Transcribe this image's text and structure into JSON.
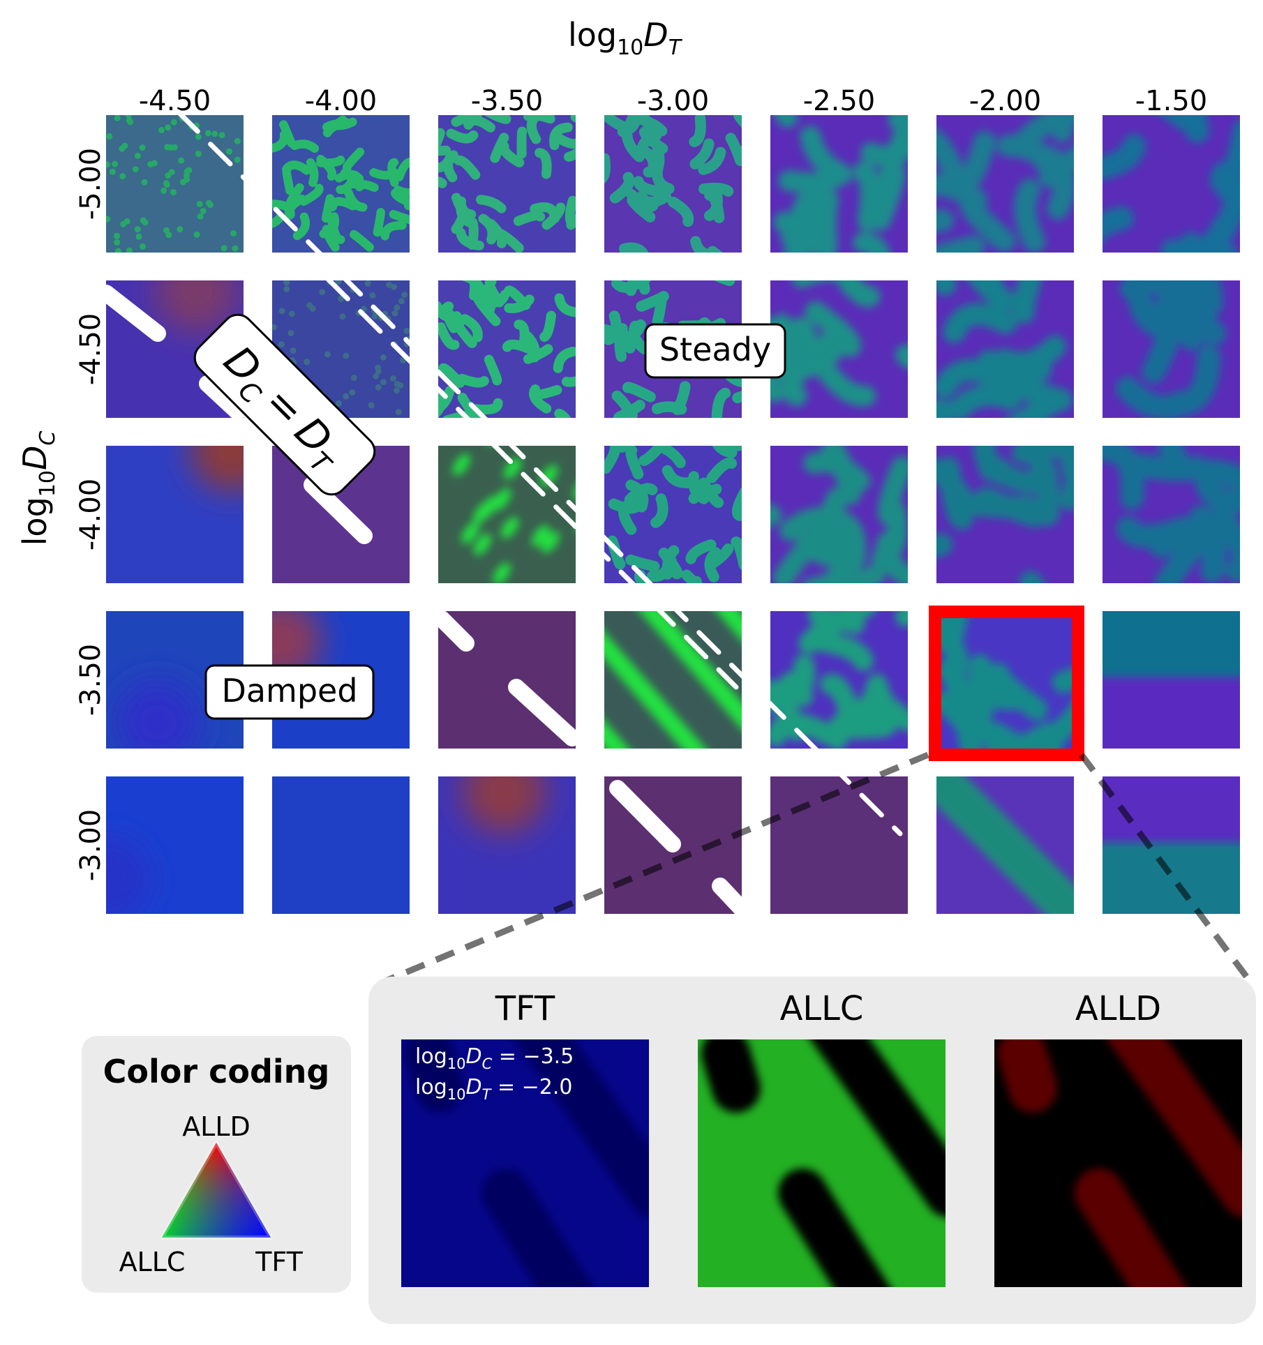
{
  "axes": {
    "x_title": "log",
    "x_title_sub": "10",
    "x_title_var": "D",
    "x_title_varsub": "T",
    "y_title": "log",
    "y_title_sub": "10",
    "y_title_var": "D",
    "y_title_varsub": "C",
    "x_ticks": [
      "-4.50",
      "-4.00",
      "-3.50",
      "-3.00",
      "-2.50",
      "-2.00",
      "-1.50"
    ],
    "y_ticks": [
      "-5.00",
      "-4.50",
      "-4.00",
      "-3.50",
      "-3.00"
    ]
  },
  "grid": {
    "rows": [
      [
        {
          "base": "#3b6a8c",
          "pattern": "dots",
          "fg": "#27a867"
        },
        {
          "base": "#3a4fa6",
          "pattern": "labyrinth",
          "fg": "#28b86c"
        },
        {
          "base": "#4a3fb0",
          "pattern": "labyrinth",
          "fg": "#2fb07c"
        },
        {
          "base": "#5a36b0",
          "pattern": "labyrinth",
          "fg": "#2aa08a"
        },
        {
          "base": "#5b2cb8",
          "pattern": "blobs",
          "fg": "#1f8c8c"
        },
        {
          "base": "#5b2cb8",
          "pattern": "blobs",
          "fg": "#1a7c92"
        },
        {
          "base": "#5b2cb8",
          "pattern": "blobs",
          "fg": "#15709a"
        }
      ],
      [
        {
          "base": "#4632b0",
          "pattern": "smooth",
          "fg": "#7a3a6a"
        },
        {
          "base": "#3a46a0",
          "pattern": "dots",
          "fg": "#3f6c8a"
        },
        {
          "base": "#4a3fb0",
          "pattern": "labyrinth",
          "fg": "#2cb77a"
        },
        {
          "base": "#5a36b0",
          "pattern": "labyrinth",
          "fg": "#26a886"
        },
        {
          "base": "#5b2cb8",
          "pattern": "blobs",
          "fg": "#1f9088"
        },
        {
          "base": "#5b2cb8",
          "pattern": "blobs",
          "fg": "#17808e"
        },
        {
          "base": "#5b2cb8",
          "pattern": "blobs",
          "fg": "#146e96"
        }
      ],
      [
        {
          "base": "#2f3fc4",
          "pattern": "smooth",
          "fg": "#8a3a3a"
        },
        {
          "base": "#5c3490",
          "pattern": "flat",
          "fg": "#5c3490"
        },
        {
          "base": "#3a5f4f",
          "pattern": "spots",
          "fg": "#22e040"
        },
        {
          "base": "#4a3ab8",
          "pattern": "labyrinth",
          "fg": "#25a484"
        },
        {
          "base": "#5b2cb8",
          "pattern": "blobs",
          "fg": "#1c8c86"
        },
        {
          "base": "#5b2cb8",
          "pattern": "blobs",
          "fg": "#157a8c"
        },
        {
          "base": "#5b2cb8",
          "pattern": "blobs",
          "fg": "#137094"
        }
      ],
      [
        {
          "base": "#1f45bb",
          "pattern": "smooth",
          "fg": "#2f2fc8"
        },
        {
          "base": "#1c3fc8",
          "pattern": "smooth",
          "fg": "#8a3a5a"
        },
        {
          "base": "#5c3070",
          "pattern": "flat",
          "fg": "#5c3070"
        },
        {
          "base": "#3a5a58",
          "pattern": "stripes",
          "fg": "#22e040"
        },
        {
          "base": "#5030c0",
          "pattern": "blobs",
          "fg": "#1c9c80"
        },
        {
          "base": "#4a36c4",
          "pattern": "blobs",
          "fg": "#158a8a"
        },
        {
          "base": "#0f7090",
          "pattern": "band",
          "fg": "#5a2cc0"
        }
      ],
      [
        {
          "base": "#1a3fd0",
          "pattern": "smooth",
          "fg": "#2830c8"
        },
        {
          "base": "#1f3fc4",
          "pattern": "flat",
          "fg": "#1f3fc4"
        },
        {
          "base": "#3c34b8",
          "pattern": "smooth",
          "fg": "#8a3a4a"
        },
        {
          "base": "#5c3070",
          "pattern": "flat",
          "fg": "#5c3070"
        },
        {
          "base": "#5c3078",
          "pattern": "flat",
          "fg": "#5c3078"
        },
        {
          "base": "#5a34b8",
          "pattern": "diag",
          "fg": "#1d8a7a"
        },
        {
          "base": "#5a2cc0",
          "pattern": "band",
          "fg": "#137a8c"
        }
      ]
    ],
    "highlight": {
      "row": 3,
      "col": 5,
      "color": "#ff0000"
    }
  },
  "annotations": {
    "diagonal_main": "D",
    "diagonal_sub_c": "C",
    "diagonal_equals": "=",
    "diagonal_sub_t": "T",
    "steady": "Steady",
    "damped": "Damped"
  },
  "legend": {
    "title": "Color coding",
    "top": "ALLD",
    "left": "ALLC",
    "right": "TFT",
    "colors": {
      "ALLD": "#ff0000",
      "ALLC": "#00ff00",
      "TFT": "#0000ff"
    }
  },
  "zoom": {
    "panels": [
      {
        "title": "TFT",
        "bg": "#06068a",
        "pattern_color": "#000060"
      },
      {
        "title": "ALLC",
        "bg": "#23b023",
        "pattern_color": "#000000"
      },
      {
        "title": "ALLD",
        "bg": "#000000",
        "pattern_color": "#5a0000"
      }
    ],
    "param_line1_pre": "log",
    "param_line1_sub": "10",
    "param_line1_var": "D",
    "param_line1_varsub": "C",
    "param_line1_val": " = −3.5",
    "param_line2_pre": "log",
    "param_line2_sub": "10",
    "param_line2_var": "D",
    "param_line2_varsub": "T",
    "param_line2_val": " = −2.0"
  }
}
